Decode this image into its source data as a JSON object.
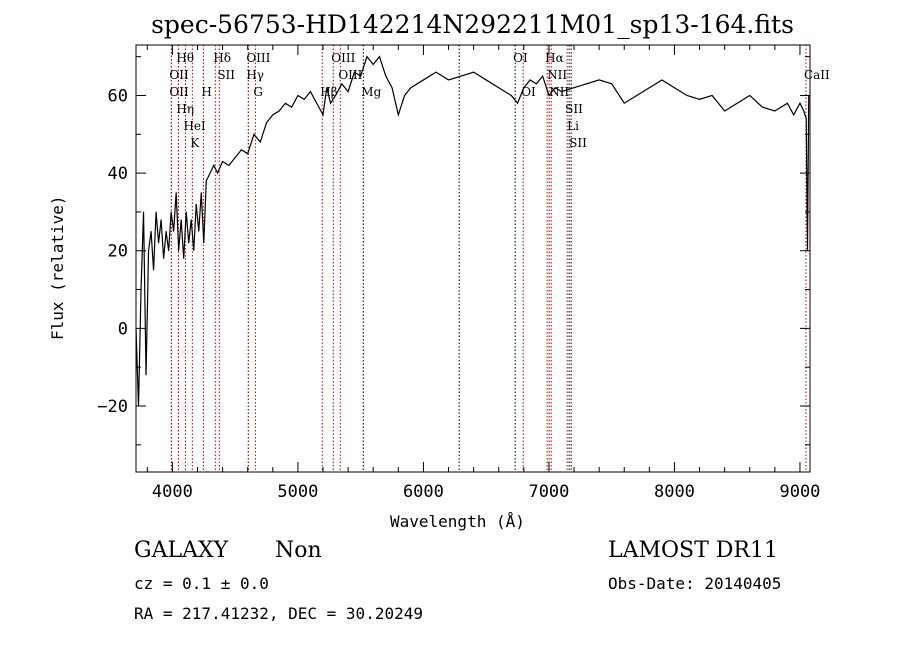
{
  "chart_data": {
    "type": "line",
    "title": "spec-56753-HD142214N292211M01_sp13-164.fits",
    "xlabel": "Wavelength (Å)",
    "ylabel": "Flux (relative)",
    "xlim": [
      3710,
      9080
    ],
    "ylim": [
      -37,
      73
    ],
    "xticks": [
      4000,
      5000,
      6000,
      7000,
      8000,
      9000
    ],
    "xtick_labels": [
      "4000",
      "5000",
      "6000",
      "7000",
      "8000",
      "9000"
    ],
    "yticks": [
      -20,
      0,
      20,
      40,
      60
    ],
    "ytick_labels": [
      "−20",
      "0",
      "20",
      "40",
      "60"
    ],
    "series": [
      {
        "name": "flux",
        "x": [
          3710,
          3730,
          3750,
          3770,
          3790,
          3810,
          3830,
          3850,
          3870,
          3890,
          3910,
          3930,
          3950,
          3970,
          3990,
          4010,
          4030,
          4050,
          4070,
          4090,
          4110,
          4130,
          4150,
          4170,
          4190,
          4210,
          4230,
          4250,
          4270,
          4300,
          4330,
          4360,
          4400,
          4450,
          4500,
          4550,
          4600,
          4650,
          4700,
          4750,
          4800,
          4850,
          4900,
          4950,
          5000,
          5050,
          5100,
          5150,
          5200,
          5230,
          5260,
          5300,
          5350,
          5400,
          5450,
          5500,
          5550,
          5600,
          5650,
          5700,
          5750,
          5800,
          5850,
          5900,
          5950,
          6000,
          6100,
          6200,
          6300,
          6400,
          6500,
          6600,
          6700,
          6750,
          6800,
          6850,
          6900,
          6950,
          7000,
          7050,
          7100,
          7200,
          7300,
          7400,
          7500,
          7600,
          7700,
          7800,
          7900,
          8000,
          8100,
          8200,
          8300,
          8400,
          8500,
          8600,
          8700,
          8800,
          8900,
          8950,
          9000,
          9030,
          9050,
          9060,
          9070
        ],
        "y": [
          0,
          -20,
          10,
          30,
          -12,
          20,
          25,
          15,
          30,
          22,
          28,
          18,
          25,
          20,
          30,
          25,
          35,
          20,
          28,
          18,
          30,
          22,
          28,
          20,
          32,
          25,
          35,
          22,
          38,
          40,
          42,
          40,
          43,
          42,
          44,
          46,
          45,
          50,
          48,
          53,
          55,
          56,
          58,
          57,
          60,
          59,
          61,
          58,
          55,
          62,
          58,
          60,
          63,
          61,
          66,
          65,
          70,
          68,
          70,
          65,
          62,
          55,
          60,
          62,
          63,
          64,
          66,
          64,
          65,
          66,
          64,
          62,
          60,
          58,
          62,
          64,
          63,
          65,
          60,
          62,
          61,
          62,
          63,
          64,
          63,
          58,
          60,
          62,
          64,
          62,
          60,
          59,
          60,
          56,
          58,
          60,
          57,
          56,
          58,
          55,
          58,
          56,
          54,
          20,
          60
        ]
      }
    ],
    "lines": [
      {
        "w": 3992,
        "color": "red",
        "label": "OII",
        "row": 2
      },
      {
        "w": 3992,
        "color": "red",
        "label": "OII",
        "row": 3
      },
      {
        "w": 4048,
        "color": "red",
        "label": "Hθ",
        "row": 1
      },
      {
        "w": 4048,
        "color": "red",
        "label": "Hη",
        "row": 3
      },
      {
        "w": 4104,
        "color": "red",
        "label": "HeI",
        "row": 2
      },
      {
        "w": 4159,
        "color": "red",
        "label": "K",
        "row": 1
      },
      {
        "w": 4247,
        "color": "red",
        "label": "H",
        "row": 3
      },
      {
        "w": 4342,
        "color": "red",
        "label": "Hδ",
        "row": 1
      },
      {
        "w": 4374,
        "color": "red",
        "label": "SII",
        "row": 2
      },
      {
        "w": 4605,
        "color": "red",
        "label": "OIII",
        "row": 1
      },
      {
        "w": 4605,
        "color": "red",
        "label": "Hγ",
        "row": 2
      },
      {
        "w": 4661,
        "color": "red",
        "label": "G",
        "row": 3
      },
      {
        "w": 5194,
        "color": "red",
        "label": "Hβ",
        "row": 3
      },
      {
        "w": 5282,
        "color": "red",
        "label": "OIII",
        "row": 1
      },
      {
        "w": 5338,
        "color": "red",
        "label": "OIII",
        "row": 2
      },
      {
        "w": 5521,
        "color": "black",
        "label": "Mg",
        "row": 3
      },
      {
        "w": 6285,
        "color": "black",
        "label": "",
        "row": 0
      },
      {
        "w": 6731,
        "color": "black",
        "label": "OI",
        "row": 1
      },
      {
        "w": 6795,
        "color": "red",
        "label": "OI",
        "row": 3
      },
      {
        "w": 6986,
        "color": "red",
        "label": "Hα",
        "row": 1
      },
      {
        "w": 7002,
        "color": "red",
        "label": "NII",
        "row": 2
      },
      {
        "w": 7018,
        "color": "red",
        "label": "NII",
        "row": 3
      },
      {
        "w": 7145,
        "color": "red",
        "label": "SII",
        "row": 1
      },
      {
        "w": 7161,
        "color": "black",
        "label": "Li",
        "row": 2
      },
      {
        "w": 7177,
        "color": "black",
        "label": "SII",
        "row": 3
      },
      {
        "w": 9048,
        "color": "red",
        "label": "CaII",
        "row": 2
      }
    ]
  },
  "info": {
    "class": "GALAXY",
    "subclass": "Non",
    "cz": "cz = 0.1 ± 0.0",
    "radec": "RA = 217.41232, DEC =  30.20249",
    "survey": "LAMOST DR11",
    "obsdate": "Obs-Date: 20140405"
  }
}
